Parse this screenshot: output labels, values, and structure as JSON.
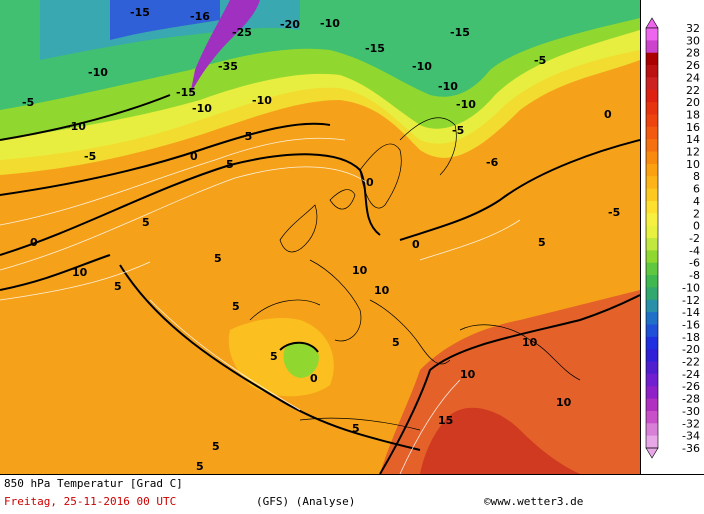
{
  "map": {
    "contour_labels": [
      {
        "t": "-15"
      },
      {
        "t": "-16"
      },
      {
        "t": "-20"
      },
      {
        "t": "-10"
      },
      {
        "t": "-15"
      },
      {
        "t": "-15"
      },
      {
        "t": "-25"
      },
      {
        "t": "-35"
      },
      {
        "t": "-10"
      },
      {
        "t": "-15"
      },
      {
        "t": "-10"
      },
      {
        "t": "-10"
      },
      {
        "t": "-10"
      },
      {
        "t": "-10"
      },
      {
        "t": "-10"
      },
      {
        "t": "-10"
      },
      {
        "t": "-5"
      },
      {
        "t": "-5"
      },
      {
        "t": "-5"
      },
      {
        "t": "-5"
      },
      {
        "t": "-5"
      },
      {
        "t": "0"
      },
      {
        "t": "0"
      },
      {
        "t": "0"
      },
      {
        "t": "0"
      },
      {
        "t": "0"
      },
      {
        "t": "5"
      },
      {
        "t": "5"
      },
      {
        "t": "5"
      },
      {
        "t": "5"
      },
      {
        "t": "5"
      },
      {
        "t": "5"
      },
      {
        "t": "5"
      },
      {
        "t": "5"
      },
      {
        "t": "5"
      },
      {
        "t": "5"
      },
      {
        "t": "10"
      },
      {
        "t": "10"
      },
      {
        "t": "10"
      },
      {
        "t": "10"
      },
      {
        "t": "10"
      },
      {
        "t": "10"
      },
      {
        "t": "15"
      },
      {
        "t": "0"
      },
      {
        "t": "-6"
      },
      {
        "t": "-5"
      },
      {
        "t": "5"
      }
    ]
  },
  "legend": {
    "colors": [
      "#ee66ee",
      "#cc44cc",
      "#aa0000",
      "#bb1111",
      "#cc2222",
      "#dd2211",
      "#e63310",
      "#ee4410",
      "#f25a10",
      "#f57010",
      "#f88a10",
      "#fba010",
      "#fcb418",
      "#fdc820",
      "#fee030",
      "#f8f040",
      "#e8f040",
      "#c0e840",
      "#90d830",
      "#60c840",
      "#40b850",
      "#30a870",
      "#2890a8",
      "#2070c8",
      "#2050d8",
      "#2030e0",
      "#3020d8",
      "#5020d0",
      "#7020d0",
      "#9020c8",
      "#b030c0",
      "#c850c8",
      "#d880d8",
      "#e8a8e8"
    ],
    "values": [
      "32",
      "30",
      "28",
      "26",
      "24",
      "22",
      "20",
      "18",
      "16",
      "14",
      "12",
      "10",
      "8",
      "6",
      "4",
      "2",
      "0",
      "-2",
      "-4",
      "-6",
      "-8",
      "-10",
      "-12",
      "-14",
      "-16",
      "-18",
      "-20",
      "-22",
      "-24",
      "-26",
      "-28",
      "-30",
      "-32",
      "-34",
      "-36"
    ]
  },
  "footer": {
    "title": "850 hPa Temperatur [Grad C]",
    "date": "Freitag, 25-11-2016  00 UTC",
    "model": "(GFS)  (Analyse)",
    "copyright": "©www.wetter3.de"
  }
}
